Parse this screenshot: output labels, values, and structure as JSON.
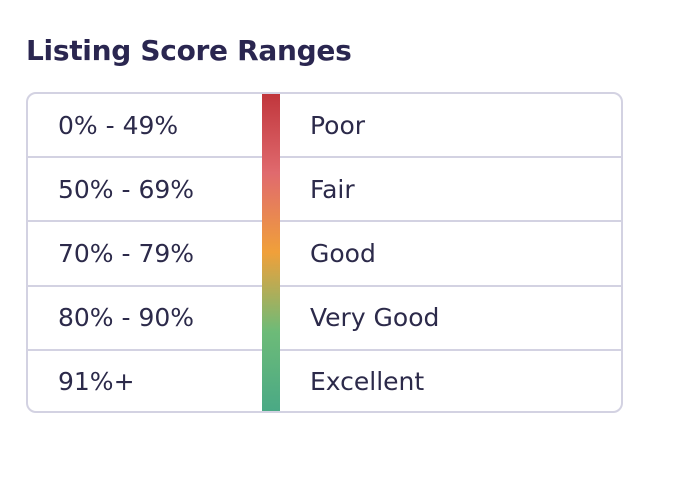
{
  "title": "Listing Score Ranges",
  "rows": [
    {
      "range": "0% - 49%",
      "label": "Poor"
    },
    {
      "range": "50% - 69%",
      "label": "Fair"
    },
    {
      "range": "70% - 79%",
      "label": "Good"
    },
    {
      "range": "80% - 90%",
      "label": "Very Good"
    },
    {
      "range": "91%+",
      "label": "Excellent"
    }
  ],
  "gradient_colors": [
    "#c0363c",
    "#e06a6e",
    "#f0a03a",
    "#6dbb78",
    "#4aa985"
  ]
}
